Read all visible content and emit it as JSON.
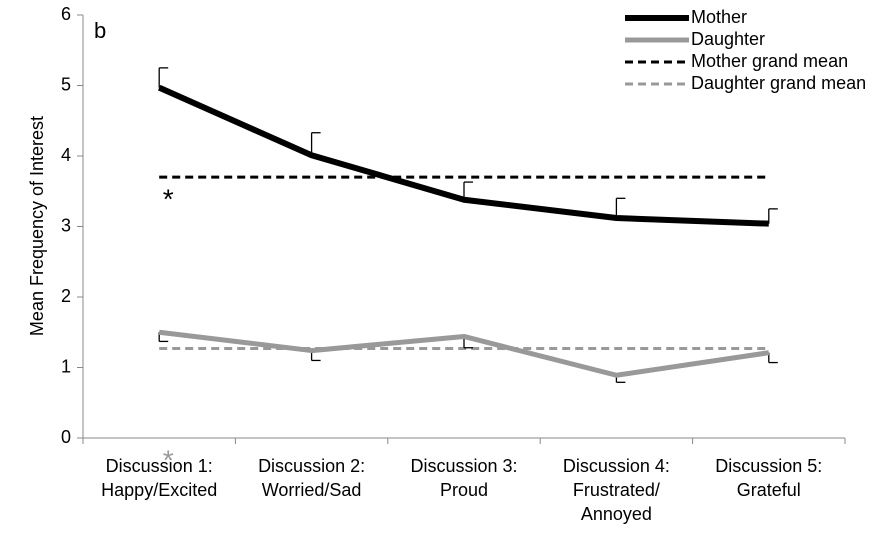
{
  "chart_data": {
    "type": "line",
    "panel_label": "b",
    "ylabel": "Mean Frequency of Interest",
    "categories": [
      [
        "Discussion 1:",
        "Happy/Excited"
      ],
      [
        "Discussion 2:",
        "Worried/Sad"
      ],
      [
        "Discussion 3:",
        "Proud"
      ],
      [
        "Discussion 4:",
        "Frustrated/",
        "Annoyed"
      ],
      [
        "Discussion 5:",
        "Grateful"
      ]
    ],
    "ylim": [
      0,
      6
    ],
    "yticks": [
      0,
      1,
      2,
      3,
      4,
      5,
      6
    ],
    "series": [
      {
        "name": "Mother",
        "color": "#000000",
        "values": [
          4.97,
          4.01,
          3.38,
          3.12,
          3.04
        ],
        "errors": [
          0.28,
          0.32,
          0.25,
          0.28,
          0.21
        ],
        "error_direction": "up"
      },
      {
        "name": "Daughter",
        "color": "#999999",
        "values": [
          1.5,
          1.24,
          1.44,
          0.89,
          1.21
        ],
        "errors": [
          0.13,
          0.14,
          0.16,
          0.1,
          0.14
        ],
        "error_direction": "down"
      }
    ],
    "reference_lines": [
      {
        "name": "Mother grand mean",
        "color": "#000000",
        "value": 3.7
      },
      {
        "name": "Daughter grand mean",
        "color": "#999999",
        "value": 1.27
      }
    ],
    "annotations": [
      {
        "text": "*",
        "color": "#000000",
        "category": 0,
        "value": 3.5
      },
      {
        "text": "*",
        "color": "#999999",
        "category": 0,
        "value": -0.2
      }
    ],
    "legend": "top-right"
  }
}
